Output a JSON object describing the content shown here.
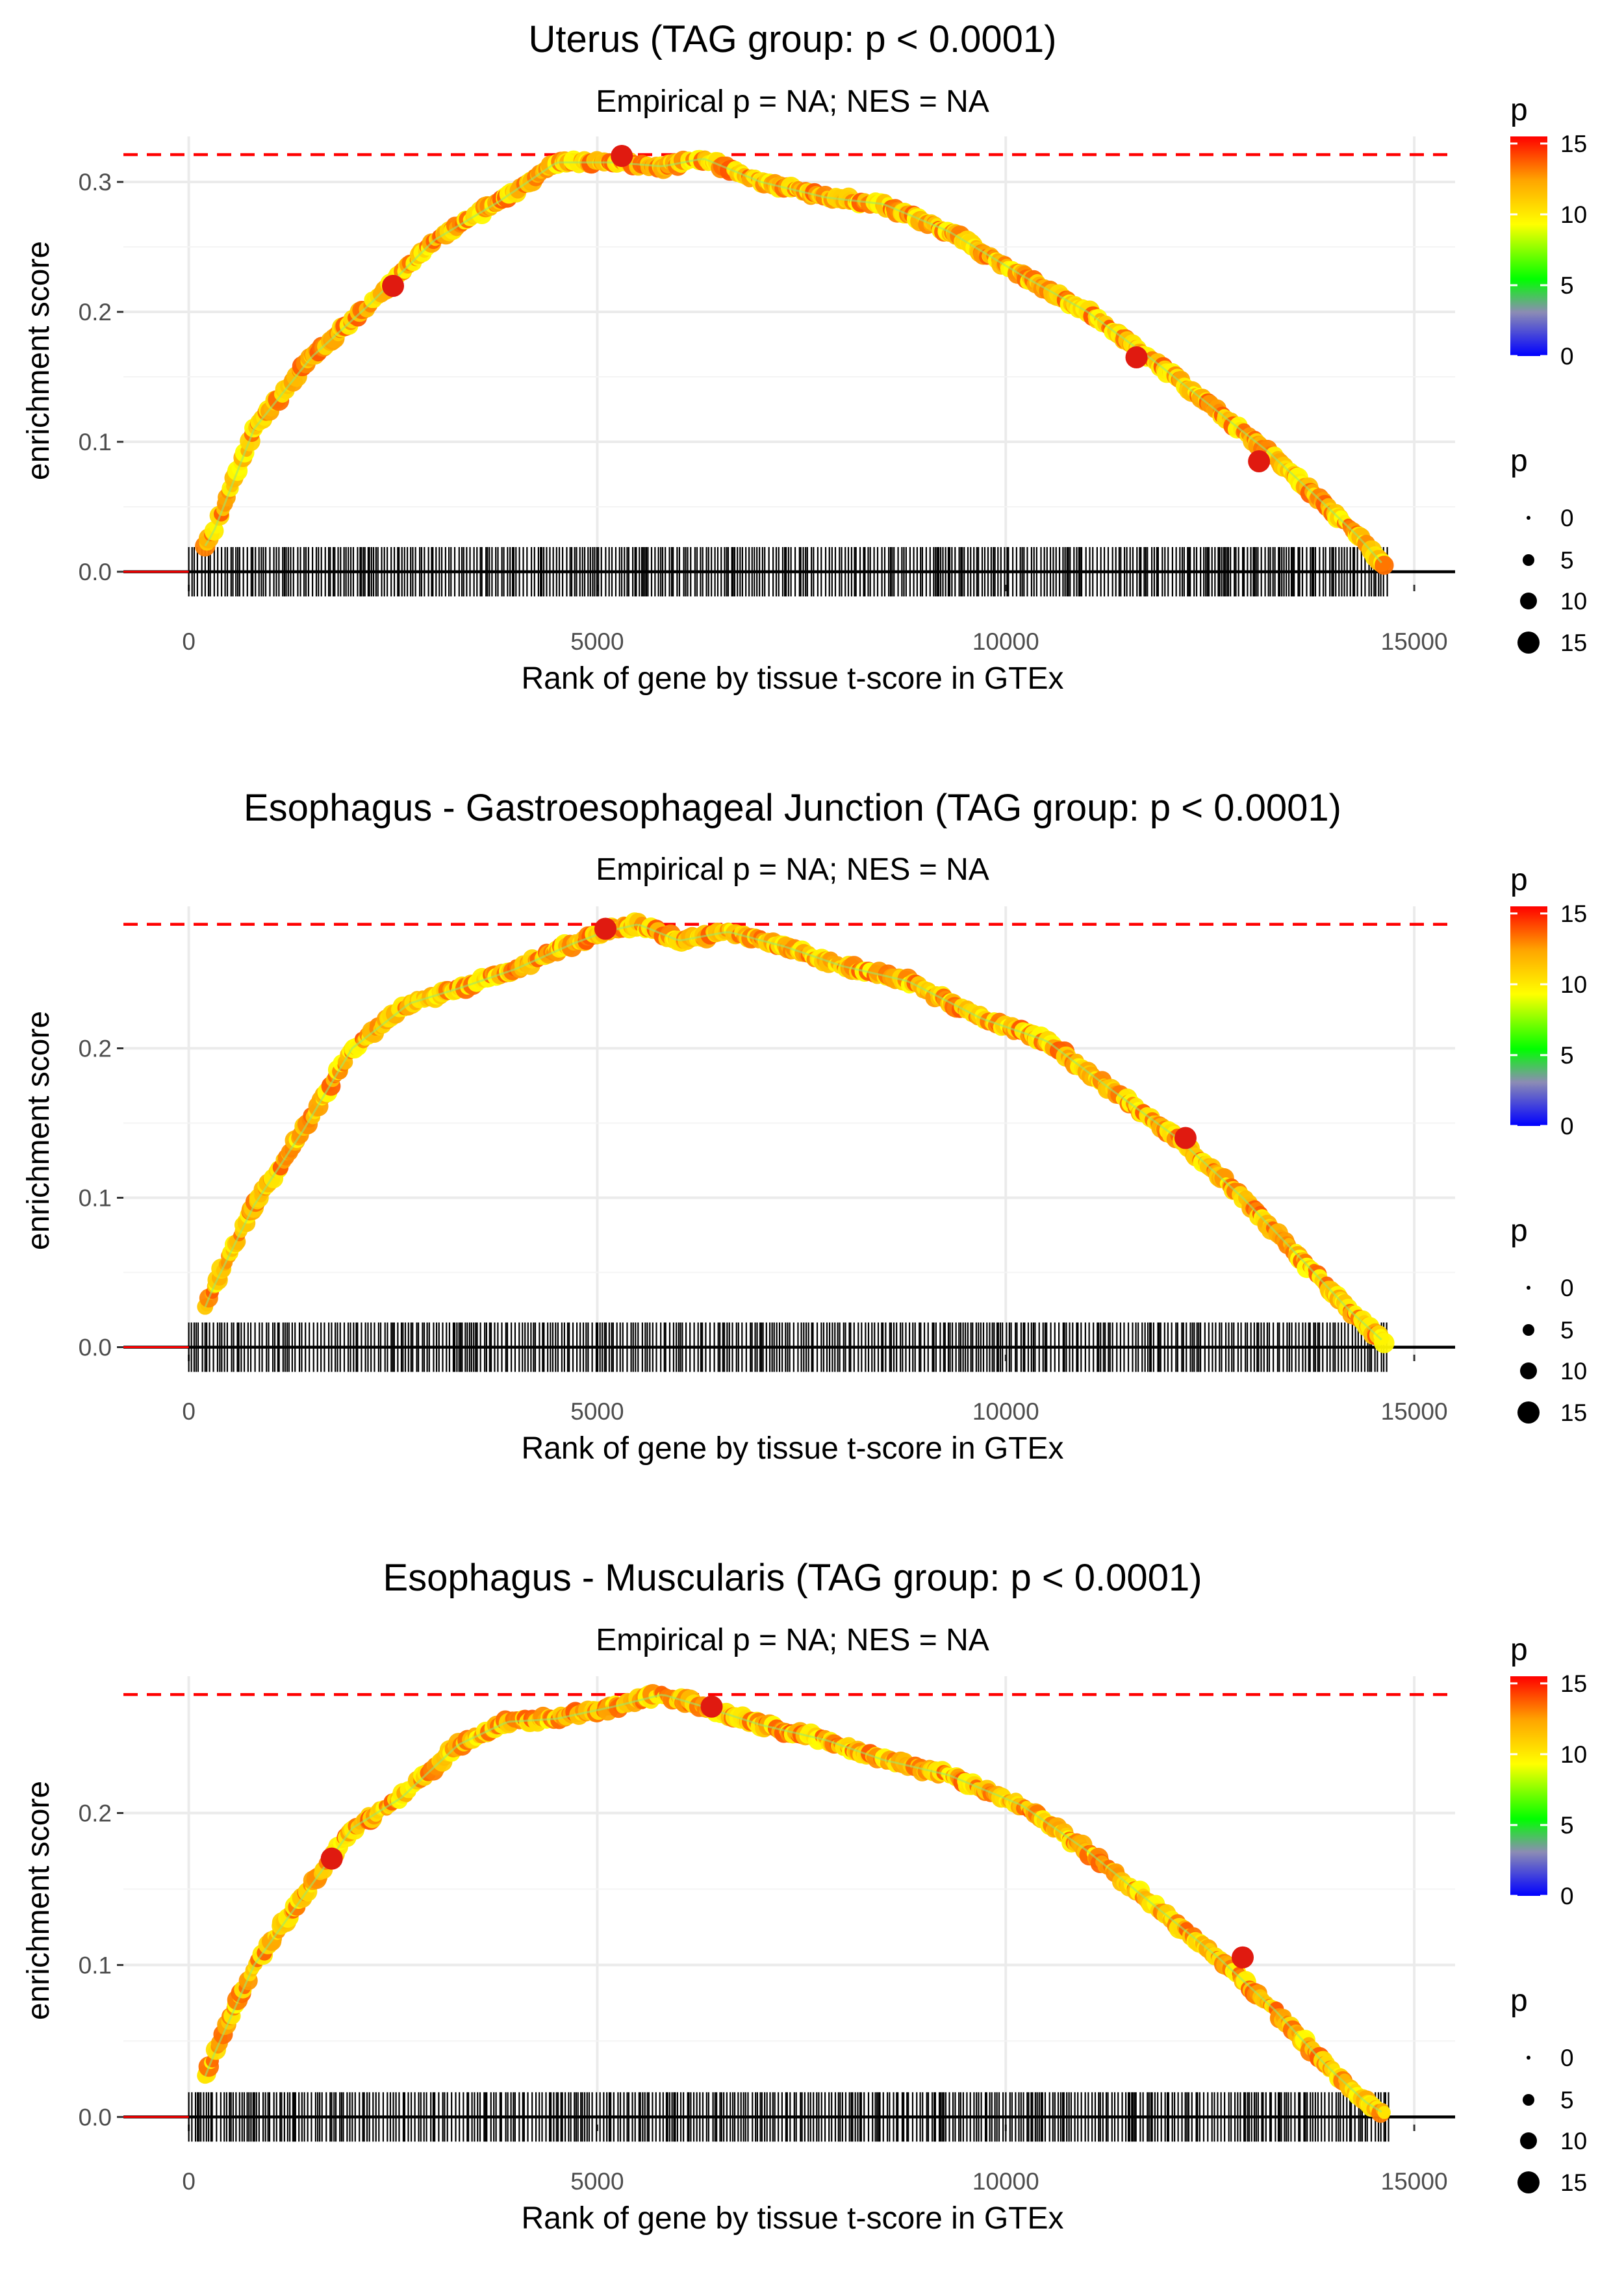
{
  "colors": {
    "threshold_line": "#ff0000",
    "baseline": "#000000",
    "rug": "#000000",
    "grid": "#ebebeb",
    "gradient": [
      "#0000ff",
      "#8c8cb4",
      "#00ff00",
      "#ffff00",
      "#ffa500",
      "#ff0000"
    ]
  },
  "chart_data": [
    {
      "type": "scatter",
      "title": "Uterus (TAG group: p < 0.0001)",
      "subtitle": "Empirical p = NA; NES = NA",
      "xlabel": "Rank of gene by tissue t-score in GTEx",
      "ylabel": "enrichment score",
      "xlim": [
        -800,
        15500
      ],
      "ylim": [
        -0.01,
        0.335
      ],
      "x_ticks": [
        0,
        5000,
        10000,
        15000
      ],
      "x_tick_labels": [
        "0",
        "5000",
        "10000",
        "15000"
      ],
      "y_ticks": [
        0,
        0.1,
        0.2,
        0.3
      ],
      "y_tick_labels": [
        "0.0",
        "0.1",
        "0.2",
        "0.3"
      ],
      "max_es": 0.321,
      "curve_x": [
        0,
        300,
        800,
        1500,
        2200,
        3000,
        3800,
        4500,
        5200,
        5800,
        6300,
        7000,
        7800,
        8500,
        9300,
        10200,
        11000,
        11800,
        12500,
        13200,
        13800,
        14300,
        14700
      ],
      "curve_y": [
        0,
        0.03,
        0.11,
        0.165,
        0.205,
        0.255,
        0.285,
        0.315,
        0.315,
        0.312,
        0.318,
        0.3,
        0.288,
        0.283,
        0.262,
        0.228,
        0.2,
        0.163,
        0.128,
        0.093,
        0.058,
        0.028,
        0
      ],
      "gene_range": [
        0,
        14700
      ],
      "sig_points": [
        {
          "x": 2500,
          "y": 0.22
        },
        {
          "x": 5300,
          "y": 0.32
        },
        {
          "x": 11600,
          "y": 0.165
        },
        {
          "x": 13100,
          "y": 0.085
        }
      ],
      "legend_color": {
        "title": "p",
        "ticks": [
          0,
          5,
          10,
          15
        ]
      },
      "legend_size": {
        "title": "p",
        "values": [
          0,
          5,
          10,
          15
        ]
      }
    },
    {
      "type": "scatter",
      "title": "Esophagus - Gastroesophageal Junction (TAG group: p < 0.0001)",
      "subtitle": "Empirical p = NA; NES = NA",
      "xlabel": "Rank of gene by tissue t-score in GTEx",
      "ylabel": "enrichment score",
      "xlim": [
        -800,
        15500
      ],
      "ylim": [
        -0.005,
        0.295
      ],
      "x_ticks": [
        0,
        5000,
        10000,
        15000
      ],
      "x_tick_labels": [
        "0",
        "5000",
        "10000",
        "15000"
      ],
      "y_ticks": [
        0,
        0.1,
        0.2
      ],
      "y_tick_labels": [
        "0.0",
        "0.1",
        "0.2"
      ],
      "max_es": 0.283,
      "curve_x": [
        0,
        300,
        800,
        1400,
        2000,
        2700,
        3300,
        4000,
        4700,
        5100,
        5500,
        6000,
        6600,
        7300,
        8000,
        8800,
        9700,
        10500,
        11300,
        12100,
        12900,
        13600,
        14200,
        14700
      ],
      "curve_y": [
        0,
        0.04,
        0.095,
        0.145,
        0.2,
        0.23,
        0.24,
        0.253,
        0.27,
        0.278,
        0.283,
        0.272,
        0.278,
        0.268,
        0.255,
        0.245,
        0.22,
        0.205,
        0.172,
        0.14,
        0.1,
        0.06,
        0.025,
        0
      ],
      "gene_range": [
        0,
        14700
      ],
      "sig_points": [
        {
          "x": 5100,
          "y": 0.28
        },
        {
          "x": 12200,
          "y": 0.14
        }
      ],
      "legend_color": {
        "title": "p",
        "ticks": [
          0,
          5,
          10,
          15
        ]
      },
      "legend_size": {
        "title": "p",
        "values": [
          0,
          5,
          10,
          15
        ]
      }
    },
    {
      "type": "scatter",
      "title": "Esophagus - Muscularis (TAG group: p < 0.0001)",
      "subtitle": "Empirical p = NA; NES = NA",
      "xlabel": "Rank of gene by tissue t-score in GTEx",
      "ylabel": "enrichment score",
      "xlim": [
        -800,
        15500
      ],
      "ylim": [
        -0.005,
        0.29
      ],
      "x_ticks": [
        0,
        5000,
        10000,
        15000
      ],
      "x_tick_labels": [
        "0",
        "5000",
        "10000",
        "15000"
      ],
      "y_ticks": [
        0,
        0.1,
        0.2
      ],
      "y_tick_labels": [
        "0.0",
        "0.1",
        "0.2"
      ],
      "max_es": 0.278,
      "curve_x": [
        0,
        300,
        800,
        1400,
        2000,
        2600,
        3300,
        3900,
        4500,
        5200,
        5800,
        6300,
        7000,
        7800,
        8500,
        9300,
        10200,
        11000,
        11800,
        12600,
        13300,
        13900,
        14400,
        14700
      ],
      "curve_y": [
        0,
        0.04,
        0.1,
        0.145,
        0.19,
        0.21,
        0.245,
        0.26,
        0.262,
        0.27,
        0.278,
        0.27,
        0.258,
        0.248,
        0.235,
        0.225,
        0.205,
        0.175,
        0.14,
        0.105,
        0.07,
        0.035,
        0.01,
        0
      ],
      "gene_range": [
        0,
        14700
      ],
      "sig_points": [
        {
          "x": 1750,
          "y": 0.17
        },
        {
          "x": 6400,
          "y": 0.27
        },
        {
          "x": 12900,
          "y": 0.105
        }
      ],
      "legend_color": {
        "title": "p",
        "ticks": [
          0,
          5,
          10,
          15
        ]
      },
      "legend_size": {
        "title": "p",
        "values": [
          0,
          5,
          10,
          15
        ]
      }
    }
  ]
}
